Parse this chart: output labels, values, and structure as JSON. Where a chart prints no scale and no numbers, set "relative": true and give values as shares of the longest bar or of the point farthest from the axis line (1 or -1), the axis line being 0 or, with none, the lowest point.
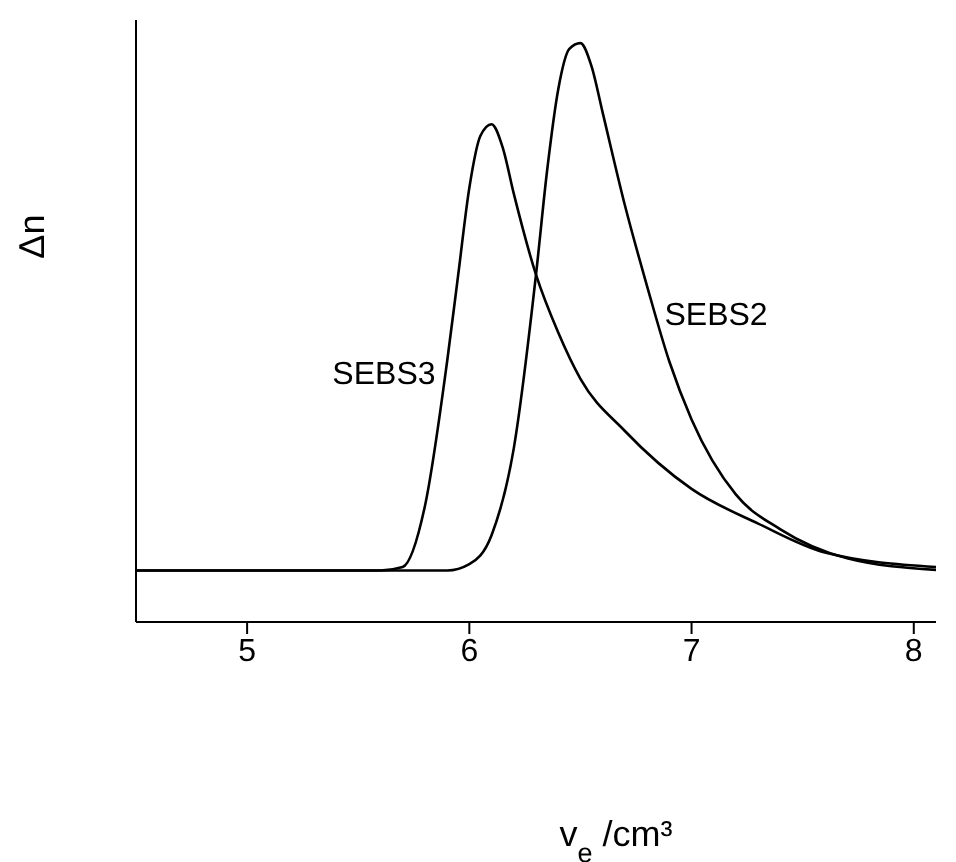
{
  "chart_data": {
    "type": "line",
    "relative": true,
    "xlabel": "v$_{e}$ /cm³",
    "ylabel": "Δn",
    "xlim": [
      4.5,
      8.1
    ],
    "xticks": [
      5,
      6,
      7,
      8
    ],
    "grid": false,
    "marker": "none",
    "line_style": "solid",
    "series": [
      {
        "name": "SEBS3",
        "color": "#000000",
        "x": [
          4.5,
          5.6,
          5.7,
          5.8,
          5.9,
          5.95,
          6.0,
          6.05,
          6.1,
          6.15,
          6.2,
          6.3,
          6.4,
          6.5,
          6.7,
          7.0,
          7.3,
          7.6,
          8.1
        ],
        "values": [
          0.089,
          0.089,
          0.095,
          0.2,
          0.45,
          0.6,
          0.75,
          0.84,
          0.86,
          0.82,
          0.74,
          0.6,
          0.5,
          0.42,
          0.33,
          0.23,
          0.17,
          0.12,
          0.095
        ]
      },
      {
        "name": "SEBS2",
        "color": "#000000",
        "x": [
          4.5,
          5.9,
          6.0,
          6.1,
          6.2,
          6.3,
          6.35,
          6.4,
          6.45,
          6.5,
          6.55,
          6.6,
          6.7,
          6.8,
          6.9,
          7.0,
          7.2,
          7.4,
          7.7,
          8.1
        ],
        "values": [
          0.089,
          0.089,
          0.1,
          0.15,
          0.3,
          0.6,
          0.78,
          0.92,
          0.99,
          1.0,
          0.96,
          0.88,
          0.72,
          0.58,
          0.45,
          0.35,
          0.22,
          0.16,
          0.11,
          0.09
        ]
      }
    ]
  }
}
